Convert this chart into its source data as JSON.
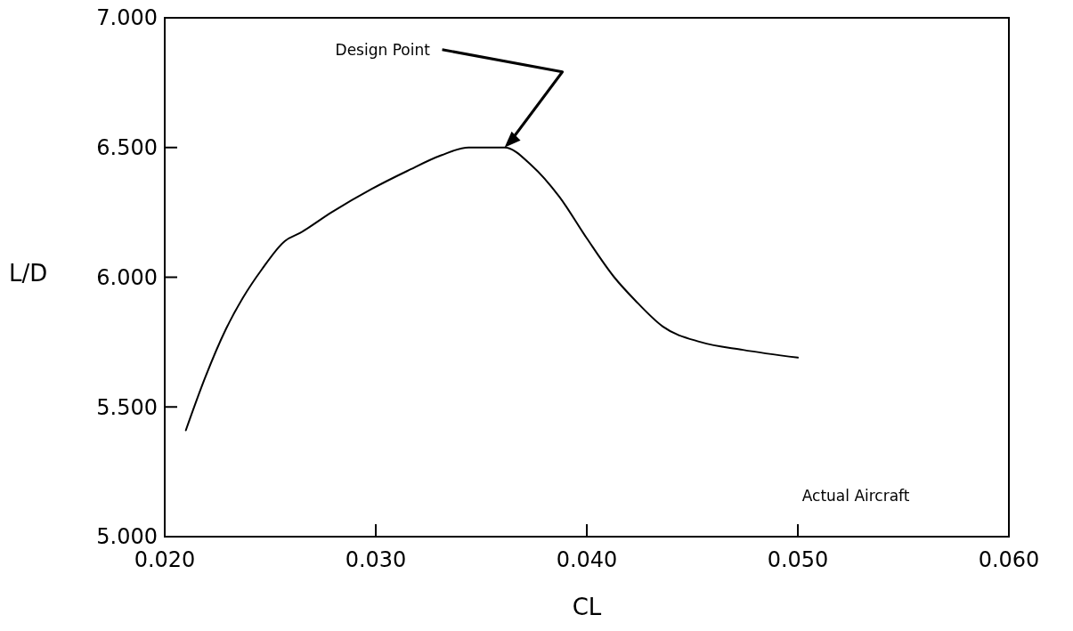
{
  "chart_data": {
    "type": "line",
    "xlabel": "CL",
    "ylabel": "L/D",
    "x": [
      0.021,
      0.0219,
      0.0229,
      0.0237,
      0.0246,
      0.0257,
      0.0264,
      0.0279,
      0.0298,
      0.0315,
      0.0331,
      0.0344,
      0.0352,
      0.0361,
      0.0374,
      0.0387,
      0.04,
      0.0413,
      0.0423,
      0.0436,
      0.0454,
      0.0474,
      0.05
    ],
    "series": [
      {
        "color": "#000000",
        "values": [
          5.41,
          5.61,
          5.8,
          5.92,
          6.03,
          6.14,
          6.17,
          6.25,
          6.34,
          6.41,
          6.47,
          6.5,
          6.5,
          6.5,
          6.43,
          6.31,
          6.15,
          6.0,
          5.91,
          5.81,
          5.75,
          5.72,
          5.69
        ]
      }
    ],
    "xlim": [
      0.02,
      0.06
    ],
    "xticks": [
      {
        "value": 0.02,
        "label": "0.020"
      },
      {
        "value": 0.03,
        "label": "0.030"
      },
      {
        "value": 0.04,
        "label": "0.040"
      },
      {
        "value": 0.05,
        "label": "0.050"
      },
      {
        "value": 0.06,
        "label": "0.060"
      }
    ],
    "ylim": [
      5,
      7
    ],
    "yticks": [
      {
        "value": 5,
        "label": "5.000"
      },
      {
        "value": 5.5,
        "label": "5.500"
      },
      {
        "value": 6,
        "label": "6.000"
      },
      {
        "value": 6.5,
        "label": "6.500"
      },
      {
        "value": 7,
        "label": "7.000"
      }
    ],
    "grid": false,
    "marker": "none",
    "line_style": "solid",
    "annotations": [
      {
        "text": "Design Point",
        "x": 0.0361,
        "y": 6.5
      },
      "Actual Aircraft"
    ]
  }
}
